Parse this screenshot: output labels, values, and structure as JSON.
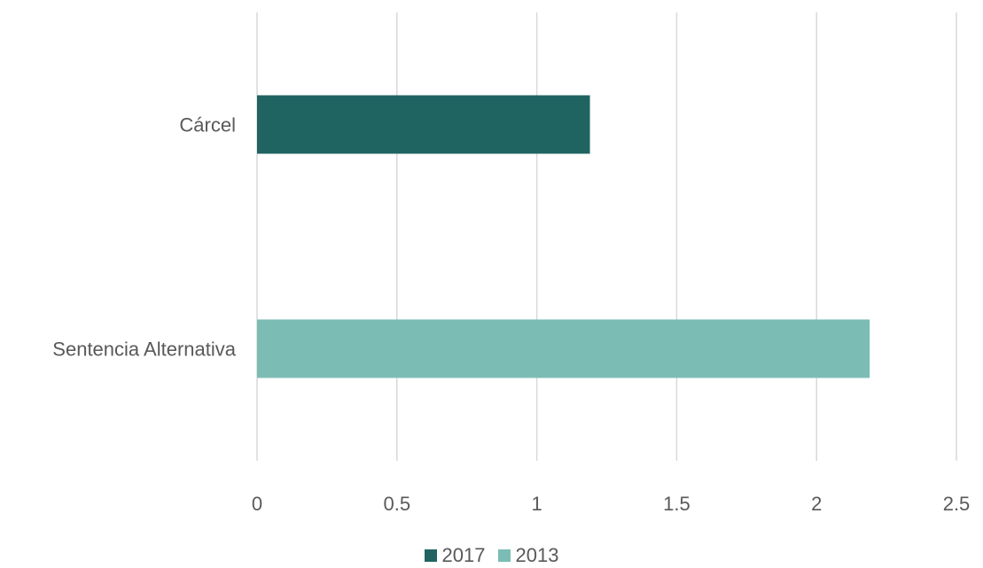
{
  "chart_data": {
    "type": "bar",
    "orientation": "horizontal",
    "title": "",
    "xlabel": "",
    "ylabel": "",
    "categories": [
      "Cárcel",
      "Sentencia Alternativa"
    ],
    "series": [
      {
        "name": "2017",
        "color": "#206462",
        "values": [
          1.19,
          null
        ]
      },
      {
        "name": "2013",
        "color": "#7bbdb5",
        "values": [
          null,
          2.19
        ]
      }
    ],
    "xlim": [
      0,
      2.5
    ],
    "xticks": [
      "0",
      "0.5",
      "1",
      "1.5",
      "2",
      "2.5"
    ],
    "grid": true,
    "legend_position": "bottom"
  }
}
